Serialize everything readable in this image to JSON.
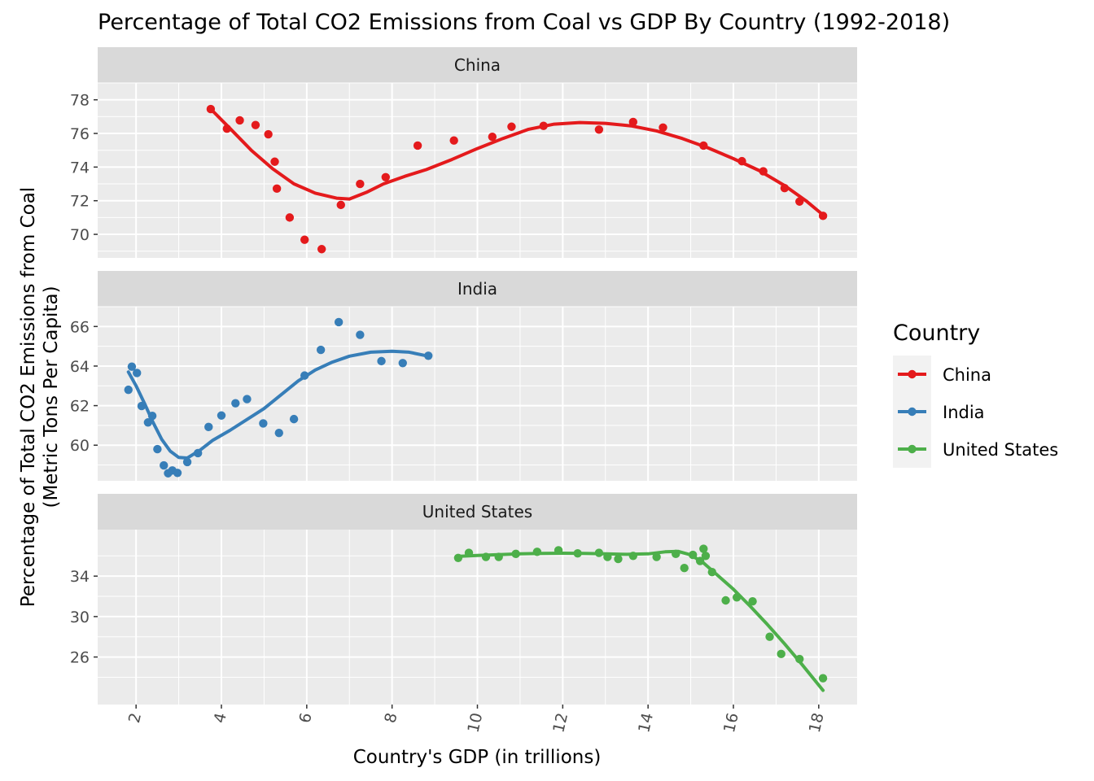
{
  "chart_data": {
    "type": "scatter",
    "title": "Percentage of Total CO2 Emissions from Coal vs GDP By Country (1992-2018)",
    "xlabel": "Country's GDP (in trillions)",
    "ylabel_line1": "Percentage of Total CO2 Emissions from Coal",
    "ylabel_line2": "(Metric Tons Per Capita)",
    "x_ticks": [
      2,
      4,
      6,
      8,
      10,
      12,
      14,
      16,
      18
    ],
    "xlim": [
      1.1,
      18.9
    ],
    "grid": true,
    "legend": {
      "title": "Country",
      "position": "right"
    },
    "panels": [
      {
        "name": "China",
        "color": "#e41a1c",
        "ylim": [
          68.6,
          79.0
        ],
        "y_ticks": [
          70,
          72,
          74,
          76,
          78
        ],
        "points": [
          [
            3.75,
            77.45
          ],
          [
            4.13,
            76.28
          ],
          [
            4.43,
            76.78
          ],
          [
            4.8,
            76.5
          ],
          [
            5.1,
            75.95
          ],
          [
            5.25,
            74.32
          ],
          [
            5.3,
            72.72
          ],
          [
            5.6,
            71.0
          ],
          [
            5.95,
            69.68
          ],
          [
            6.35,
            69.12
          ],
          [
            6.8,
            71.75
          ],
          [
            7.25,
            73.0
          ],
          [
            7.85,
            73.4
          ],
          [
            8.6,
            75.28
          ],
          [
            9.45,
            75.58
          ],
          [
            10.35,
            75.8
          ],
          [
            10.8,
            76.4
          ],
          [
            11.55,
            76.45
          ],
          [
            12.85,
            76.23
          ],
          [
            13.65,
            76.68
          ],
          [
            14.35,
            76.35
          ],
          [
            15.3,
            75.28
          ],
          [
            16.2,
            74.35
          ],
          [
            16.7,
            73.75
          ],
          [
            17.2,
            72.75
          ],
          [
            17.55,
            71.95
          ],
          [
            18.1,
            71.1
          ]
        ],
        "smooth": [
          [
            3.75,
            77.45
          ],
          [
            4.2,
            76.3
          ],
          [
            4.7,
            75.0
          ],
          [
            5.2,
            73.9
          ],
          [
            5.7,
            73.0
          ],
          [
            6.2,
            72.45
          ],
          [
            6.7,
            72.15
          ],
          [
            7.0,
            72.1
          ],
          [
            7.4,
            72.5
          ],
          [
            7.8,
            73.0
          ],
          [
            8.3,
            73.45
          ],
          [
            8.8,
            73.85
          ],
          [
            9.4,
            74.45
          ],
          [
            10.0,
            75.1
          ],
          [
            10.6,
            75.7
          ],
          [
            11.2,
            76.25
          ],
          [
            11.8,
            76.55
          ],
          [
            12.4,
            76.65
          ],
          [
            13.0,
            76.6
          ],
          [
            13.6,
            76.45
          ],
          [
            14.2,
            76.15
          ],
          [
            14.8,
            75.7
          ],
          [
            15.4,
            75.15
          ],
          [
            16.0,
            74.5
          ],
          [
            16.6,
            73.8
          ],
          [
            17.2,
            72.9
          ],
          [
            17.7,
            72.0
          ],
          [
            18.15,
            71.05
          ]
        ]
      },
      {
        "name": "India",
        "color": "#377eb8",
        "ylim": [
          58.2,
          67.0
        ],
        "y_ticks": [
          60,
          62,
          64,
          66
        ],
        "points": [
          [
            1.82,
            62.8
          ],
          [
            1.9,
            63.97
          ],
          [
            2.02,
            63.65
          ],
          [
            2.13,
            61.98
          ],
          [
            2.28,
            61.15
          ],
          [
            2.38,
            61.48
          ],
          [
            2.5,
            59.8
          ],
          [
            2.65,
            58.98
          ],
          [
            2.75,
            58.58
          ],
          [
            2.85,
            58.72
          ],
          [
            2.97,
            58.6
          ],
          [
            3.2,
            59.15
          ],
          [
            3.45,
            59.6
          ],
          [
            3.7,
            60.92
          ],
          [
            4.0,
            61.5
          ],
          [
            4.33,
            62.12
          ],
          [
            4.6,
            62.33
          ],
          [
            4.98,
            61.1
          ],
          [
            5.35,
            60.62
          ],
          [
            5.7,
            61.32
          ],
          [
            5.95,
            63.52
          ],
          [
            6.33,
            64.82
          ],
          [
            6.75,
            66.22
          ],
          [
            7.25,
            65.58
          ],
          [
            7.75,
            64.25
          ],
          [
            8.25,
            64.15
          ],
          [
            8.85,
            64.52
          ]
        ],
        "smooth": [
          [
            1.82,
            63.7
          ],
          [
            2.0,
            63.0
          ],
          [
            2.2,
            62.1
          ],
          [
            2.4,
            61.15
          ],
          [
            2.6,
            60.3
          ],
          [
            2.8,
            59.7
          ],
          [
            3.0,
            59.38
          ],
          [
            3.2,
            59.35
          ],
          [
            3.5,
            59.75
          ],
          [
            3.8,
            60.25
          ],
          [
            4.2,
            60.75
          ],
          [
            4.6,
            61.3
          ],
          [
            5.0,
            61.85
          ],
          [
            5.4,
            62.55
          ],
          [
            5.8,
            63.25
          ],
          [
            6.2,
            63.8
          ],
          [
            6.6,
            64.2
          ],
          [
            7.0,
            64.5
          ],
          [
            7.5,
            64.7
          ],
          [
            8.0,
            64.75
          ],
          [
            8.4,
            64.7
          ],
          [
            8.85,
            64.5
          ]
        ]
      },
      {
        "name": "United States",
        "color": "#4daf4a",
        "ylim": [
          21.3,
          38.6
        ],
        "y_ticks": [
          26,
          30,
          34
        ],
        "points": [
          [
            9.55,
            35.8
          ],
          [
            9.8,
            36.3
          ],
          [
            10.2,
            35.9
          ],
          [
            10.5,
            35.9
          ],
          [
            10.9,
            36.2
          ],
          [
            11.4,
            36.4
          ],
          [
            11.9,
            36.55
          ],
          [
            12.35,
            36.25
          ],
          [
            12.85,
            36.3
          ],
          [
            13.05,
            35.9
          ],
          [
            13.3,
            35.7
          ],
          [
            13.65,
            36.0
          ],
          [
            14.2,
            35.9
          ],
          [
            14.65,
            36.2
          ],
          [
            14.85,
            34.8
          ],
          [
            15.05,
            36.1
          ],
          [
            15.22,
            35.5
          ],
          [
            15.3,
            36.7
          ],
          [
            15.35,
            36.0
          ],
          [
            15.5,
            34.4
          ],
          [
            15.82,
            31.6
          ],
          [
            16.08,
            31.9
          ],
          [
            16.45,
            31.5
          ],
          [
            16.85,
            28.0
          ],
          [
            17.12,
            26.3
          ],
          [
            17.55,
            25.8
          ],
          [
            18.1,
            23.9
          ]
        ],
        "smooth": [
          [
            9.55,
            35.95
          ],
          [
            10.0,
            36.05
          ],
          [
            10.5,
            36.12
          ],
          [
            11.0,
            36.2
          ],
          [
            11.5,
            36.25
          ],
          [
            12.0,
            36.27
          ],
          [
            12.5,
            36.25
          ],
          [
            13.0,
            36.2
          ],
          [
            13.5,
            36.15
          ],
          [
            14.0,
            36.2
          ],
          [
            14.4,
            36.4
          ],
          [
            14.7,
            36.45
          ],
          [
            15.0,
            36.1
          ],
          [
            15.3,
            35.3
          ],
          [
            15.6,
            34.2
          ],
          [
            16.0,
            32.7
          ],
          [
            16.4,
            31.0
          ],
          [
            16.8,
            29.2
          ],
          [
            17.2,
            27.3
          ],
          [
            17.6,
            25.3
          ],
          [
            18.1,
            22.7
          ]
        ]
      }
    ]
  }
}
